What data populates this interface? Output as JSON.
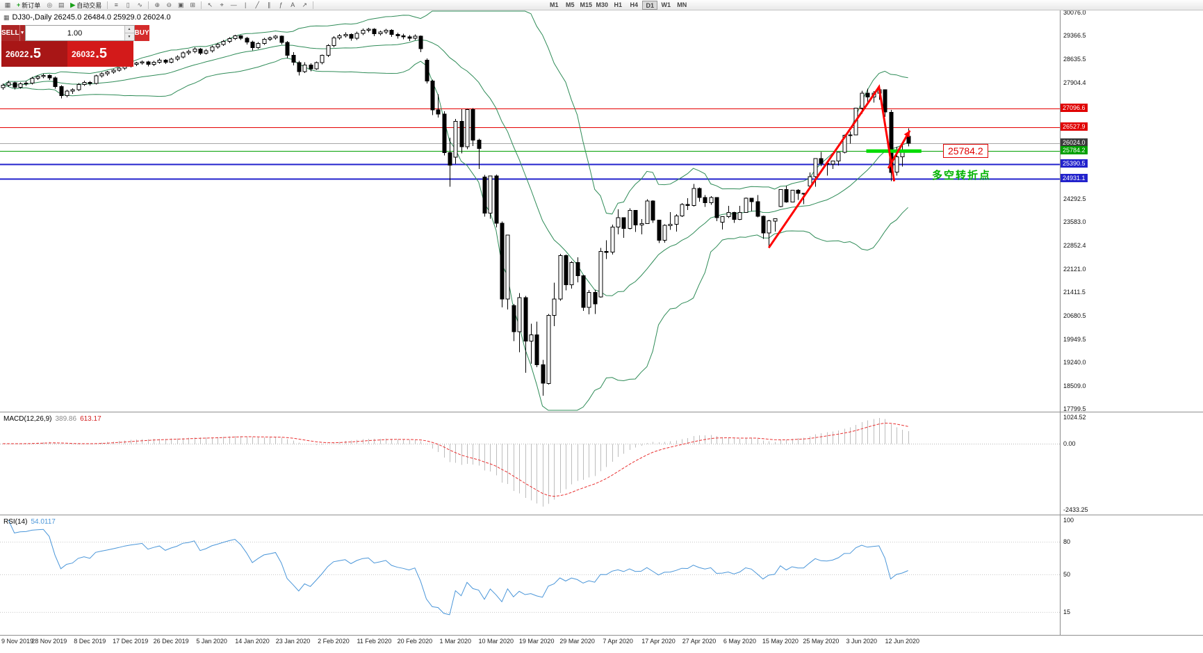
{
  "toolbar": {
    "items": [
      {
        "type": "icon",
        "name": "charts-grid-icon",
        "glyph": "▦"
      },
      {
        "type": "button",
        "name": "new-order-button",
        "glyph": "+",
        "glyph_color": "#18a018",
        "label": "新订单"
      },
      {
        "type": "icon",
        "name": "compass-icon",
        "glyph": "◎"
      },
      {
        "type": "icon",
        "name": "market-depth-icon",
        "glyph": "▤"
      },
      {
        "type": "button",
        "name": "auto-trading-button",
        "glyph": "▶",
        "glyph_color": "#18a018",
        "label": "自动交易"
      },
      {
        "type": "sep"
      },
      {
        "type": "icon",
        "name": "bar-chart-icon",
        "glyph": "≡"
      },
      {
        "type": "icon",
        "name": "candlestick-chart-icon",
        "glyph": "▯"
      },
      {
        "type": "icon",
        "name": "line-chart-icon",
        "glyph": "∿"
      },
      {
        "type": "sep"
      },
      {
        "type": "icon",
        "name": "zoom-in-icon",
        "glyph": "⊕"
      },
      {
        "type": "icon",
        "name": "zoom-out-icon",
        "glyph": "⊖"
      },
      {
        "type": "icon",
        "name": "tile-windows-icon",
        "glyph": "▣"
      },
      {
        "type": "icon",
        "name": "cascade-windows-icon",
        "glyph": "⊞"
      },
      {
        "type": "sep"
      },
      {
        "type": "icon",
        "name": "cursor-icon",
        "glyph": "↖"
      },
      {
        "type": "icon",
        "name": "crosshair-icon",
        "glyph": "⌖"
      },
      {
        "type": "icon",
        "name": "horizontal-line-icon",
        "glyph": "―"
      },
      {
        "type": "icon",
        "name": "vertical-line-icon",
        "glyph": "|"
      },
      {
        "type": "icon",
        "name": "trendline-icon",
        "glyph": "╱"
      },
      {
        "type": "icon",
        "name": "channel-icon",
        "glyph": "∥"
      },
      {
        "type": "icon",
        "name": "fibonacci-icon",
        "glyph": "ƒ"
      },
      {
        "type": "icon",
        "name": "text-tool-icon",
        "glyph": "A"
      },
      {
        "type": "icon",
        "name": "arrow-tool-icon",
        "glyph": "↗"
      },
      {
        "type": "sep"
      }
    ],
    "timeframes": [
      "M1",
      "M5",
      "M15",
      "M30",
      "H1",
      "H4",
      "D1",
      "W1",
      "MN"
    ],
    "active_timeframe": "D1"
  },
  "symbol_info": {
    "text": "DJ30-,Daily  26245.0 26484.0 25929.0 26024.0"
  },
  "trade_panel": {
    "sell_label": "SELL",
    "buy_label": "BUY",
    "volume": "1.00",
    "sell_price_small": "26022",
    "sell_price_big": ".5",
    "buy_price_small": "26032",
    "buy_price_big": ".5"
  },
  "indicators": {
    "macd_label": "MACD(12,26,9)",
    "macd_main_value": "389.86",
    "macd_signal_value": "613.17",
    "rsi_label": "RSI(14)",
    "rsi_value": "54.0117"
  },
  "axes": {
    "main": [
      "30076.0",
      "29366.5",
      "28635.5",
      "27904.4",
      "24292.5",
      "23583.0",
      "22852.4",
      "22121.0",
      "21411.5",
      "20680.5",
      "19949.5",
      "19240.0",
      "18509.0",
      "17799.5"
    ],
    "macd": [
      "1024.52",
      "0.00",
      "-2433.25"
    ],
    "rsi": [
      "100",
      "80",
      "50",
      "15"
    ],
    "dates": [
      "9 Nov 2019",
      "28 Nov 2019",
      "8 Dec 2019",
      "17 Dec 2019",
      "26 Dec 2019",
      "5 Jan 2020",
      "14 Jan 2020",
      "23 Jan 2020",
      "2 Feb 2020",
      "11 Feb 2020",
      "20 Feb 2020",
      "1 Mar 2020",
      "10 Mar 2020",
      "19 Mar 2020",
      "29 Mar 2020",
      "7 Apr 2020",
      "17 Apr 2020",
      "27 Apr 2020",
      "6 May 2020",
      "15 May 2020",
      "25 May 2020",
      "3 Jun 2020",
      "12 Jun 2020"
    ]
  },
  "annotations": {
    "level_label": "25784.2",
    "turning_point_text": "多空转折点"
  },
  "chart_data": {
    "type": "candlestick",
    "symbol": "DJ30-",
    "timeframe": "Daily",
    "last_ohlc": {
      "open": 26245.0,
      "high": 26484.0,
      "low": 25929.0,
      "close": 26024.0
    },
    "price_range": [
      17799.5,
      30076.0
    ],
    "hlines": [
      {
        "price": 27096.6,
        "color": "#E50000",
        "width": 1,
        "label": "27096.6",
        "label_bg": "#E00000"
      },
      {
        "price": 26527.9,
        "color": "#E50000",
        "width": 1,
        "label": "26527.9",
        "label_bg": "#E00000"
      },
      {
        "price": 26024.0,
        "color": "#A6A6A6",
        "width": 1,
        "label": "26024.0",
        "label_bg": "#3C3C3C"
      },
      {
        "price": 25784.2,
        "color": "#00A000",
        "width": 1,
        "label": "25784.2",
        "label_bg": "#00A000"
      },
      {
        "price": 25390.5,
        "color": "#2222CC",
        "width": 2,
        "label": "25390.5",
        "label_bg": "#2222CC"
      },
      {
        "price": 24931.1,
        "color": "#2222CC",
        "width": 2,
        "label": "24931.1",
        "label_bg": "#2222CC"
      }
    ],
    "bollinger": {
      "period": 20,
      "deviation": 2,
      "color": "#2E8B57"
    },
    "macd": {
      "fast": 12,
      "slow": 26,
      "signal": 9,
      "histogram_color": "#BDBDBD",
      "signal_color": "#E93030"
    },
    "rsi": {
      "period": 14,
      "color": "#4A96D9",
      "levels": [
        80,
        50,
        15
      ]
    },
    "trend_line": {
      "points": [
        [
          132,
          22790
        ],
        [
          151,
          27770
        ],
        [
          153.6,
          24850
        ]
      ],
      "color": "#FF0000",
      "width": 3
    },
    "arrow": {
      "from": [
        152.6,
        25250
      ],
      "to": [
        156.3,
        26420
      ],
      "color": "#FF0000",
      "width": 3
    },
    "support_segment": {
      "price": 25784.2,
      "from_index": 148.8,
      "to_index": 158.3,
      "color": "#00DC00",
      "width": 5
    },
    "ohlc": [
      [
        27750,
        27880,
        27690,
        27820
      ],
      [
        27820,
        27960,
        27770,
        27900
      ],
      [
        27900,
        27930,
        27700,
        27760
      ],
      [
        27760,
        27910,
        27720,
        27870
      ],
      [
        27870,
        27950,
        27800,
        27890
      ],
      [
        27890,
        28080,
        27850,
        28040
      ],
      [
        28040,
        28130,
        27990,
        28090
      ],
      [
        28090,
        28180,
        28040,
        28130
      ],
      [
        28130,
        28160,
        27990,
        28050
      ],
      [
        28050,
        28090,
        27720,
        27780
      ],
      [
        27780,
        27820,
        27420,
        27500
      ],
      [
        27500,
        27690,
        27450,
        27640
      ],
      [
        27640,
        27730,
        27560,
        27680
      ],
      [
        27680,
        27890,
        27640,
        27850
      ],
      [
        27850,
        27960,
        27800,
        27910
      ],
      [
        27910,
        27950,
        27810,
        27880
      ],
      [
        27880,
        28150,
        27850,
        28120
      ],
      [
        28120,
        28220,
        28060,
        28180
      ],
      [
        28180,
        28270,
        28120,
        28230
      ],
      [
        28230,
        28320,
        28180,
        28290
      ],
      [
        28290,
        28390,
        28240,
        28350
      ],
      [
        28350,
        28460,
        28300,
        28420
      ],
      [
        28420,
        28510,
        28370,
        28470
      ],
      [
        28470,
        28550,
        28420,
        28510
      ],
      [
        28510,
        28590,
        28460,
        28550
      ],
      [
        28550,
        28580,
        28410,
        28470
      ],
      [
        28470,
        28580,
        28420,
        28540
      ],
      [
        28540,
        28650,
        28490,
        28600
      ],
      [
        28600,
        28630,
        28480,
        28540
      ],
      [
        28540,
        28680,
        28500,
        28630
      ],
      [
        28630,
        28750,
        28580,
        28700
      ],
      [
        28700,
        28870,
        28650,
        28830
      ],
      [
        28830,
        28920,
        28760,
        28870
      ],
      [
        28870,
        29000,
        28820,
        28950
      ],
      [
        28950,
        28980,
        28760,
        28820
      ],
      [
        28820,
        28940,
        28770,
        28890
      ],
      [
        28890,
        29050,
        28840,
        29010
      ],
      [
        29010,
        29140,
        28960,
        29090
      ],
      [
        29090,
        29220,
        29040,
        29180
      ],
      [
        29180,
        29310,
        29130,
        29270
      ],
      [
        29270,
        29390,
        29220,
        29350
      ],
      [
        29350,
        29380,
        29220,
        29280
      ],
      [
        29280,
        29320,
        29090,
        29160
      ],
      [
        29160,
        29200,
        28900,
        28990
      ],
      [
        28990,
        29160,
        28940,
        29120
      ],
      [
        29120,
        29290,
        29070,
        29250
      ],
      [
        29250,
        29330,
        29190,
        29290
      ],
      [
        29290,
        29380,
        29240,
        29340
      ],
      [
        29340,
        29370,
        29080,
        29150
      ],
      [
        29150,
        29190,
        28650,
        28750
      ],
      [
        28750,
        28850,
        28440,
        28530
      ],
      [
        28530,
        28580,
        28130,
        28250
      ],
      [
        28250,
        28540,
        28200,
        28450
      ],
      [
        28450,
        28500,
        28260,
        28330
      ],
      [
        28330,
        28560,
        28300,
        28520
      ],
      [
        28520,
        28770,
        28470,
        28750
      ],
      [
        28750,
        29100,
        28700,
        29050
      ],
      [
        29050,
        29340,
        29000,
        29290
      ],
      [
        29290,
        29410,
        29240,
        29350
      ],
      [
        29350,
        29460,
        29300,
        29400
      ],
      [
        29400,
        29430,
        29200,
        29280
      ],
      [
        29280,
        29480,
        29230,
        29430
      ],
      [
        29430,
        29580,
        29380,
        29530
      ],
      [
        29530,
        29600,
        29460,
        29560
      ],
      [
        29560,
        29590,
        29340,
        29420
      ],
      [
        29420,
        29520,
        29360,
        29470
      ],
      [
        29470,
        29570,
        29410,
        29530
      ],
      [
        29530,
        29560,
        29320,
        29400
      ],
      [
        29400,
        29450,
        29270,
        29350
      ],
      [
        29350,
        29420,
        29250,
        29320
      ],
      [
        29320,
        29380,
        29190,
        29280
      ],
      [
        29280,
        29400,
        29220,
        29340
      ],
      [
        29340,
        29360,
        28850,
        28950
      ],
      [
        28600,
        28650,
        27880,
        27950
      ],
      [
        27950,
        28000,
        26900,
        27060
      ],
      [
        27060,
        27550,
        26820,
        26930
      ],
      [
        26930,
        27020,
        25650,
        25740
      ],
      [
        25740,
        26200,
        24680,
        25350
      ],
      [
        25590,
        26780,
        25390,
        26700
      ],
      [
        26700,
        27080,
        25710,
        25920
      ],
      [
        25920,
        27090,
        25840,
        27070
      ],
      [
        27070,
        27110,
        25940,
        26120
      ],
      [
        26120,
        26170,
        25230,
        25860
      ],
      [
        24980,
        25050,
        23750,
        23860
      ],
      [
        23860,
        25020,
        23690,
        25010
      ],
      [
        25010,
        25060,
        23420,
        23550
      ],
      [
        23550,
        23600,
        20940,
        21200
      ],
      [
        21200,
        23190,
        20880,
        23180
      ],
      [
        21000,
        21050,
        19900,
        20190
      ],
      [
        20190,
        21380,
        19550,
        21240
      ],
      [
        21240,
        21300,
        18920,
        19900
      ],
      [
        19900,
        20440,
        19200,
        20090
      ],
      [
        20090,
        20500,
        19090,
        19170
      ],
      [
        19170,
        19320,
        18210,
        18590
      ],
      [
        18590,
        20740,
        18550,
        20700
      ],
      [
        20700,
        21710,
        20360,
        21200
      ],
      [
        21200,
        22600,
        21150,
        22550
      ],
      [
        22550,
        22580,
        21470,
        21640
      ],
      [
        21640,
        22380,
        21520,
        22330
      ],
      [
        22330,
        22490,
        21720,
        21920
      ],
      [
        21920,
        21950,
        20840,
        20940
      ],
      [
        20940,
        21480,
        20730,
        21410
      ],
      [
        21410,
        21490,
        20740,
        21050
      ],
      [
        21270,
        22780,
        21250,
        22680
      ],
      [
        22680,
        23020,
        22440,
        22650
      ],
      [
        22650,
        23510,
        22580,
        23430
      ],
      [
        23430,
        23980,
        23210,
        23720
      ],
      [
        23720,
        23730,
        23100,
        23390
      ],
      [
        23390,
        24010,
        23360,
        23950
      ],
      [
        23950,
        23960,
        23280,
        23500
      ],
      [
        23500,
        23680,
        23200,
        23540
      ],
      [
        23540,
        24290,
        23530,
        24240
      ],
      [
        24240,
        24260,
        23560,
        23650
      ],
      [
        23650,
        23660,
        22940,
        23020
      ],
      [
        23020,
        23520,
        22950,
        23480
      ],
      [
        23480,
        23890,
        23340,
        23520
      ],
      [
        23520,
        23830,
        23290,
        23780
      ],
      [
        23780,
        24170,
        23740,
        24130
      ],
      [
        24130,
        24330,
        23960,
        24100
      ],
      [
        24100,
        24770,
        24070,
        24630
      ],
      [
        24630,
        24660,
        24220,
        24350
      ],
      [
        24350,
        24420,
        24060,
        24180
      ],
      [
        24180,
        24390,
        24120,
        24350
      ],
      [
        24350,
        24360,
        23610,
        23720
      ],
      [
        23580,
        23760,
        23360,
        23750
      ],
      [
        23750,
        24090,
        23710,
        23880
      ],
      [
        23880,
        23900,
        23560,
        23670
      ],
      [
        23670,
        24090,
        23650,
        23880
      ],
      [
        23880,
        24350,
        23870,
        24330
      ],
      [
        24330,
        24340,
        23920,
        24220
      ],
      [
        24220,
        24420,
        23730,
        23770
      ],
      [
        23770,
        23790,
        23060,
        23250
      ],
      [
        23250,
        23660,
        22790,
        23620
      ],
      [
        23620,
        23700,
        23290,
        23690
      ],
      [
        24070,
        24600,
        24050,
        24595
      ],
      [
        24595,
        24710,
        24190,
        24210
      ],
      [
        24210,
        24580,
        24200,
        24575
      ],
      [
        24575,
        24600,
        24270,
        24475
      ],
      [
        24475,
        24480,
        24140,
        24465
      ],
      [
        24700,
        25120,
        24690,
        24995
      ],
      [
        24995,
        25560,
        24680,
        25550
      ],
      [
        25550,
        25760,
        25320,
        25400
      ],
      [
        25400,
        25440,
        25030,
        25380
      ],
      [
        25380,
        25480,
        25230,
        25475
      ],
      [
        25475,
        25760,
        25340,
        25743
      ],
      [
        25743,
        26300,
        25710,
        26270
      ],
      [
        26270,
        26390,
        26020,
        26282
      ],
      [
        26282,
        27120,
        26280,
        27111
      ],
      [
        27111,
        27650,
        26940,
        27572
      ],
      [
        27572,
        27720,
        27260,
        27460
      ],
      [
        27460,
        27640,
        27290,
        27580
      ],
      [
        27580,
        27770,
        27370,
        27680
      ],
      [
        27680,
        27700,
        26850,
        26990
      ],
      [
        26990,
        27060,
        24850,
        25128
      ],
      [
        25128,
        25920,
        25030,
        25605
      ],
      [
        25605,
        25980,
        25300,
        25763
      ],
      [
        26245,
        26484,
        25929,
        26024
      ]
    ]
  }
}
